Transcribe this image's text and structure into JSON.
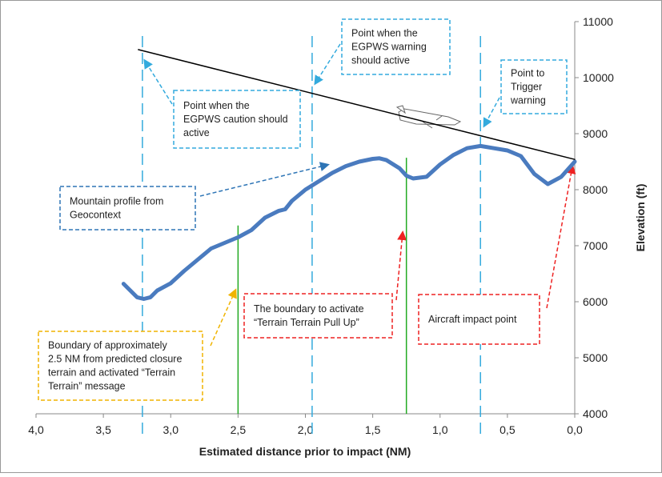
{
  "chart_data": {
    "type": "line",
    "x_label": "Estimated distance prior to impact (NM)",
    "y_label": "Elevation (ft)",
    "xlim": [
      4,
      0
    ],
    "xticks": [
      {
        "value": 4,
        "label": "4,0"
      },
      {
        "value": 3.5,
        "label": "3,5"
      },
      {
        "value": 3,
        "label": "3,0"
      },
      {
        "value": 2.5,
        "label": "2,5"
      },
      {
        "value": 2,
        "label": "2,0"
      },
      {
        "value": 1.5,
        "label": "1,5"
      },
      {
        "value": 1,
        "label": "1,0"
      },
      {
        "value": 0.5,
        "label": "0,5"
      },
      {
        "value": 0,
        "label": "0,0"
      }
    ],
    "ylim": [
      4000,
      11000
    ],
    "yticks": [
      4000,
      5000,
      6000,
      7000,
      8000,
      9000,
      10000,
      11000
    ],
    "series": [
      {
        "color": "#4a7bbf",
        "width": 5,
        "x": [
          3.35,
          3.3,
          3.25,
          3.2,
          3.15,
          3.1,
          3.0,
          2.9,
          2.8,
          2.7,
          2.6,
          2.5,
          2.4,
          2.3,
          2.2,
          2.15,
          2.1,
          2.0,
          1.9,
          1.8,
          1.7,
          1.6,
          1.5,
          1.45,
          1.4,
          1.3,
          1.25,
          1.2,
          1.1,
          1.0,
          0.9,
          0.8,
          0.7,
          0.6,
          0.5,
          0.4,
          0.3,
          0.2,
          0.1,
          0.0
        ],
        "values": [
          6320,
          6200,
          6080,
          6050,
          6080,
          6200,
          6330,
          6550,
          6750,
          6950,
          7050,
          7150,
          7280,
          7500,
          7620,
          7650,
          7800,
          8000,
          8150,
          8300,
          8420,
          8500,
          8550,
          8560,
          8530,
          8380,
          8250,
          8200,
          8230,
          8450,
          8620,
          8740,
          8780,
          8740,
          8700,
          8600,
          8280,
          8100,
          8230,
          8500
        ]
      },
      {
        "color": "#000000",
        "width": 1.5,
        "x": [
          3.24,
          0.0
        ],
        "values": [
          10500,
          8540
        ]
      }
    ],
    "reference_lines": [
      {
        "x": 3.21,
        "color": "#33aadd",
        "style": "dashed"
      },
      {
        "x": 1.95,
        "color": "#33aadd",
        "style": "dashed"
      },
      {
        "x": 0.7,
        "color": "#33aadd",
        "style": "dashed"
      },
      {
        "x": 2.5,
        "y_top": 7360,
        "color": "#22aa22",
        "style": "solid"
      },
      {
        "x": 1.25,
        "y_top": 8570,
        "color": "#22aa22",
        "style": "solid"
      }
    ],
    "annotations": [
      {
        "lines": [
          "Point when the",
          "EGPWS caution should",
          "active"
        ],
        "color": "#33aadd"
      },
      {
        "lines": [
          "Point when the",
          "EGPWS warning",
          "should active"
        ],
        "color": "#33aadd"
      },
      {
        "lines": [
          "Point to",
          "Trigger",
          "warning"
        ],
        "color": "#33aadd"
      },
      {
        "lines": [
          "Mountain profile from",
          "Geocontext"
        ],
        "color": "#2e75b6"
      },
      {
        "lines": [
          "The boundary to activate",
          "“Terrain Terrain Pull Up”"
        ],
        "color": "#ee2222"
      },
      {
        "lines": [
          "Aircraft impact point"
        ],
        "color": "#ee2222"
      },
      {
        "lines": [
          "Boundary of approximately",
          "2.5 NM from predicted closure",
          "terrain and activated “Terrain",
          "Terrain” message"
        ],
        "color": "#f0b400"
      }
    ]
  }
}
